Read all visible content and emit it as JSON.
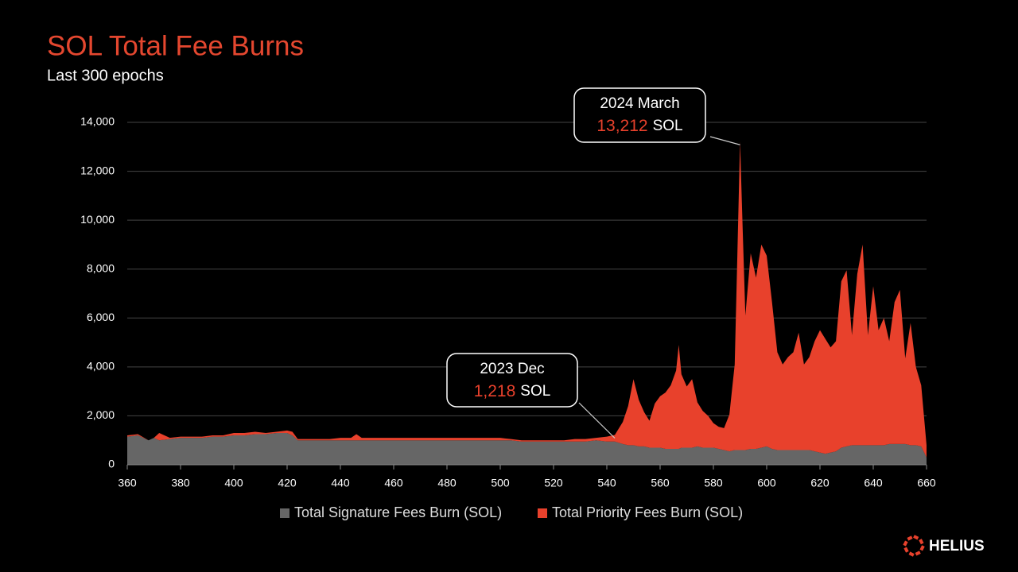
{
  "chart_data": {
    "type": "stacked_area",
    "title": "SOL Total Fee Burns",
    "subtitle": "Last 300 epochs",
    "logo": "HELIUS",
    "x": [
      360,
      364,
      368,
      370,
      372,
      376,
      380,
      384,
      388,
      392,
      396,
      400,
      404,
      408,
      412,
      416,
      420,
      422,
      424,
      428,
      432,
      436,
      440,
      444,
      446,
      448,
      452,
      456,
      460,
      464,
      468,
      472,
      476,
      480,
      484,
      488,
      492,
      496,
      500,
      504,
      508,
      512,
      516,
      520,
      524,
      528,
      532,
      536,
      540,
      543,
      546,
      548,
      550,
      552,
      554,
      556,
      558,
      560,
      562,
      564,
      566,
      567,
      568,
      570,
      572,
      574,
      576,
      578,
      580,
      582,
      584,
      586,
      588,
      589,
      590,
      591,
      592,
      594,
      596,
      598,
      600,
      602,
      604,
      606,
      608,
      610,
      612,
      614,
      616,
      618,
      620,
      622,
      624,
      626,
      628,
      630,
      632,
      634,
      636,
      638,
      640,
      642,
      644,
      646,
      648,
      650,
      652,
      654,
      656,
      658,
      660
    ],
    "series": [
      {
        "name": "Total Signature Fees Burn (SOL)",
        "color": "#666666",
        "values": [
          1150,
          1200,
          1000,
          1100,
          1000,
          1050,
          1100,
          1100,
          1100,
          1150,
          1150,
          1200,
          1200,
          1250,
          1250,
          1300,
          1300,
          1200,
          1000,
          1000,
          1000,
          1000,
          1000,
          1000,
          1000,
          1000,
          1000,
          1000,
          1000,
          1000,
          1000,
          1000,
          1000,
          1000,
          1000,
          1000,
          1000,
          1000,
          1000,
          1000,
          950,
          950,
          950,
          950,
          950,
          950,
          950,
          1000,
          950,
          950,
          850,
          800,
          800,
          750,
          750,
          700,
          700,
          700,
          650,
          650,
          650,
          650,
          700,
          700,
          700,
          750,
          700,
          700,
          700,
          650,
          600,
          550,
          600,
          600,
          600,
          600,
          600,
          650,
          650,
          700,
          750,
          650,
          600,
          600,
          600,
          600,
          600,
          600,
          600,
          550,
          500,
          450,
          500,
          550,
          700,
          750,
          800,
          800,
          800,
          800,
          800,
          800,
          800,
          850,
          850,
          850,
          850,
          800,
          800,
          750,
          300
        ]
      },
      {
        "name": "Total Priority Fees Burn (SOL)",
        "color": "#e8412c",
        "values": [
          50,
          50,
          0,
          0,
          300,
          50,
          50,
          50,
          50,
          50,
          50,
          100,
          100,
          100,
          50,
          50,
          100,
          150,
          50,
          50,
          50,
          50,
          100,
          100,
          250,
          100,
          100,
          100,
          100,
          100,
          100,
          100,
          100,
          100,
          100,
          100,
          100,
          100,
          100,
          50,
          50,
          50,
          50,
          50,
          50,
          100,
          100,
          100,
          200,
          268,
          900,
          1600,
          2700,
          1900,
          1400,
          1100,
          1800,
          2100,
          2300,
          2600,
          3200,
          4250,
          3000,
          2500,
          2800,
          1800,
          1500,
          1300,
          1000,
          900,
          900,
          1500,
          3500,
          8000,
          12612,
          9000,
          5500,
          8000,
          7000,
          8300,
          7800,
          6000,
          4000,
          3500,
          3800,
          4000,
          4800,
          3500,
          3800,
          4500,
          5000,
          4700,
          4300,
          4500,
          6800,
          7200,
          4500,
          7000,
          8200,
          4500,
          6500,
          4700,
          5200,
          4200,
          5800,
          6300,
          3500,
          5000,
          3200,
          2500,
          500
        ]
      }
    ],
    "xlim": [
      360,
      660
    ],
    "xticks": [
      360,
      380,
      400,
      420,
      440,
      460,
      480,
      500,
      520,
      540,
      560,
      580,
      600,
      620,
      640,
      660
    ],
    "ylim": [
      0,
      14000
    ],
    "yticks": [
      0,
      {
        "value": 2000,
        "label": "2,000"
      },
      {
        "value": 4000,
        "label": "4,000"
      },
      {
        "value": 6000,
        "label": "6,000"
      },
      {
        "value": 8000,
        "label": "8,000"
      },
      {
        "value": 10000,
        "label": "10,000"
      },
      {
        "value": 12000,
        "label": "12,000"
      },
      {
        "value": 14000,
        "label": "14,000"
      }
    ],
    "grid": true,
    "legend": "bottom",
    "annotations": [
      {
        "text": "2024 March",
        "x": 590,
        "value": 13212,
        "value_label": "13,212",
        "unit": "SOL"
      },
      {
        "text": "2023 Dec",
        "x": 543,
        "value": 1218,
        "value_label": "1,218",
        "unit": "SOL"
      }
    ]
  }
}
